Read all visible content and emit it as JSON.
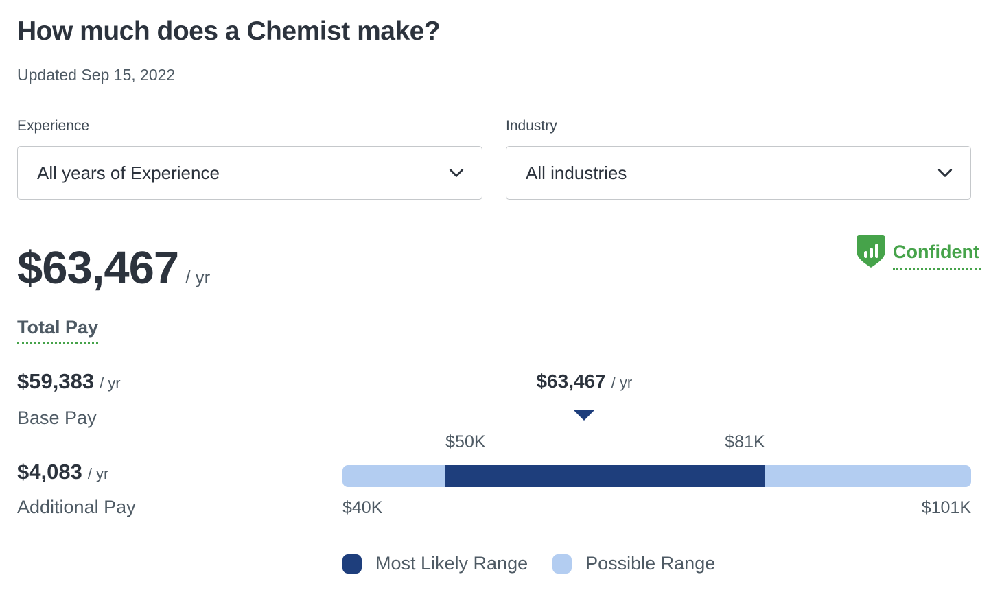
{
  "page": {
    "title": "How much does a Chemist make?",
    "updated": "Updated Sep 15, 2022"
  },
  "filters": {
    "experience": {
      "label": "Experience",
      "value": "All years of Experience"
    },
    "industry": {
      "label": "Industry",
      "value": "All industries"
    }
  },
  "total_pay": {
    "amount": "$63,467",
    "per": "/ yr",
    "label": "Total Pay",
    "confidence_label": "Confident"
  },
  "breakdown": [
    {
      "amount": "$59,383",
      "per": "/ yr",
      "label": "Base Pay"
    },
    {
      "amount": "$4,083",
      "per": "/ yr",
      "label": "Additional Pay"
    }
  ],
  "chart_data": {
    "type": "range-bar",
    "axis_min": 40000,
    "axis_max": 101000,
    "axis_min_label": "$40K",
    "axis_max_label": "$101K",
    "most_likely_min": 50000,
    "most_likely_max": 81000,
    "most_likely_min_label": "$50K",
    "most_likely_max_label": "$81K",
    "marker": {
      "value": 63467,
      "label": "$63,467",
      "per": "/ yr"
    },
    "legend": [
      {
        "label": "Most Likely Range",
        "color": "#1e3e7c"
      },
      {
        "label": "Possible Range",
        "color": "#b3cdf1"
      }
    ]
  },
  "colors": {
    "dark_text": "#2c333d",
    "gray_text": "#4e5a64",
    "green": "#46a34a",
    "navy": "#1e3e7c",
    "light_blue": "#b3cdf1",
    "border": "#c5c8cb"
  }
}
